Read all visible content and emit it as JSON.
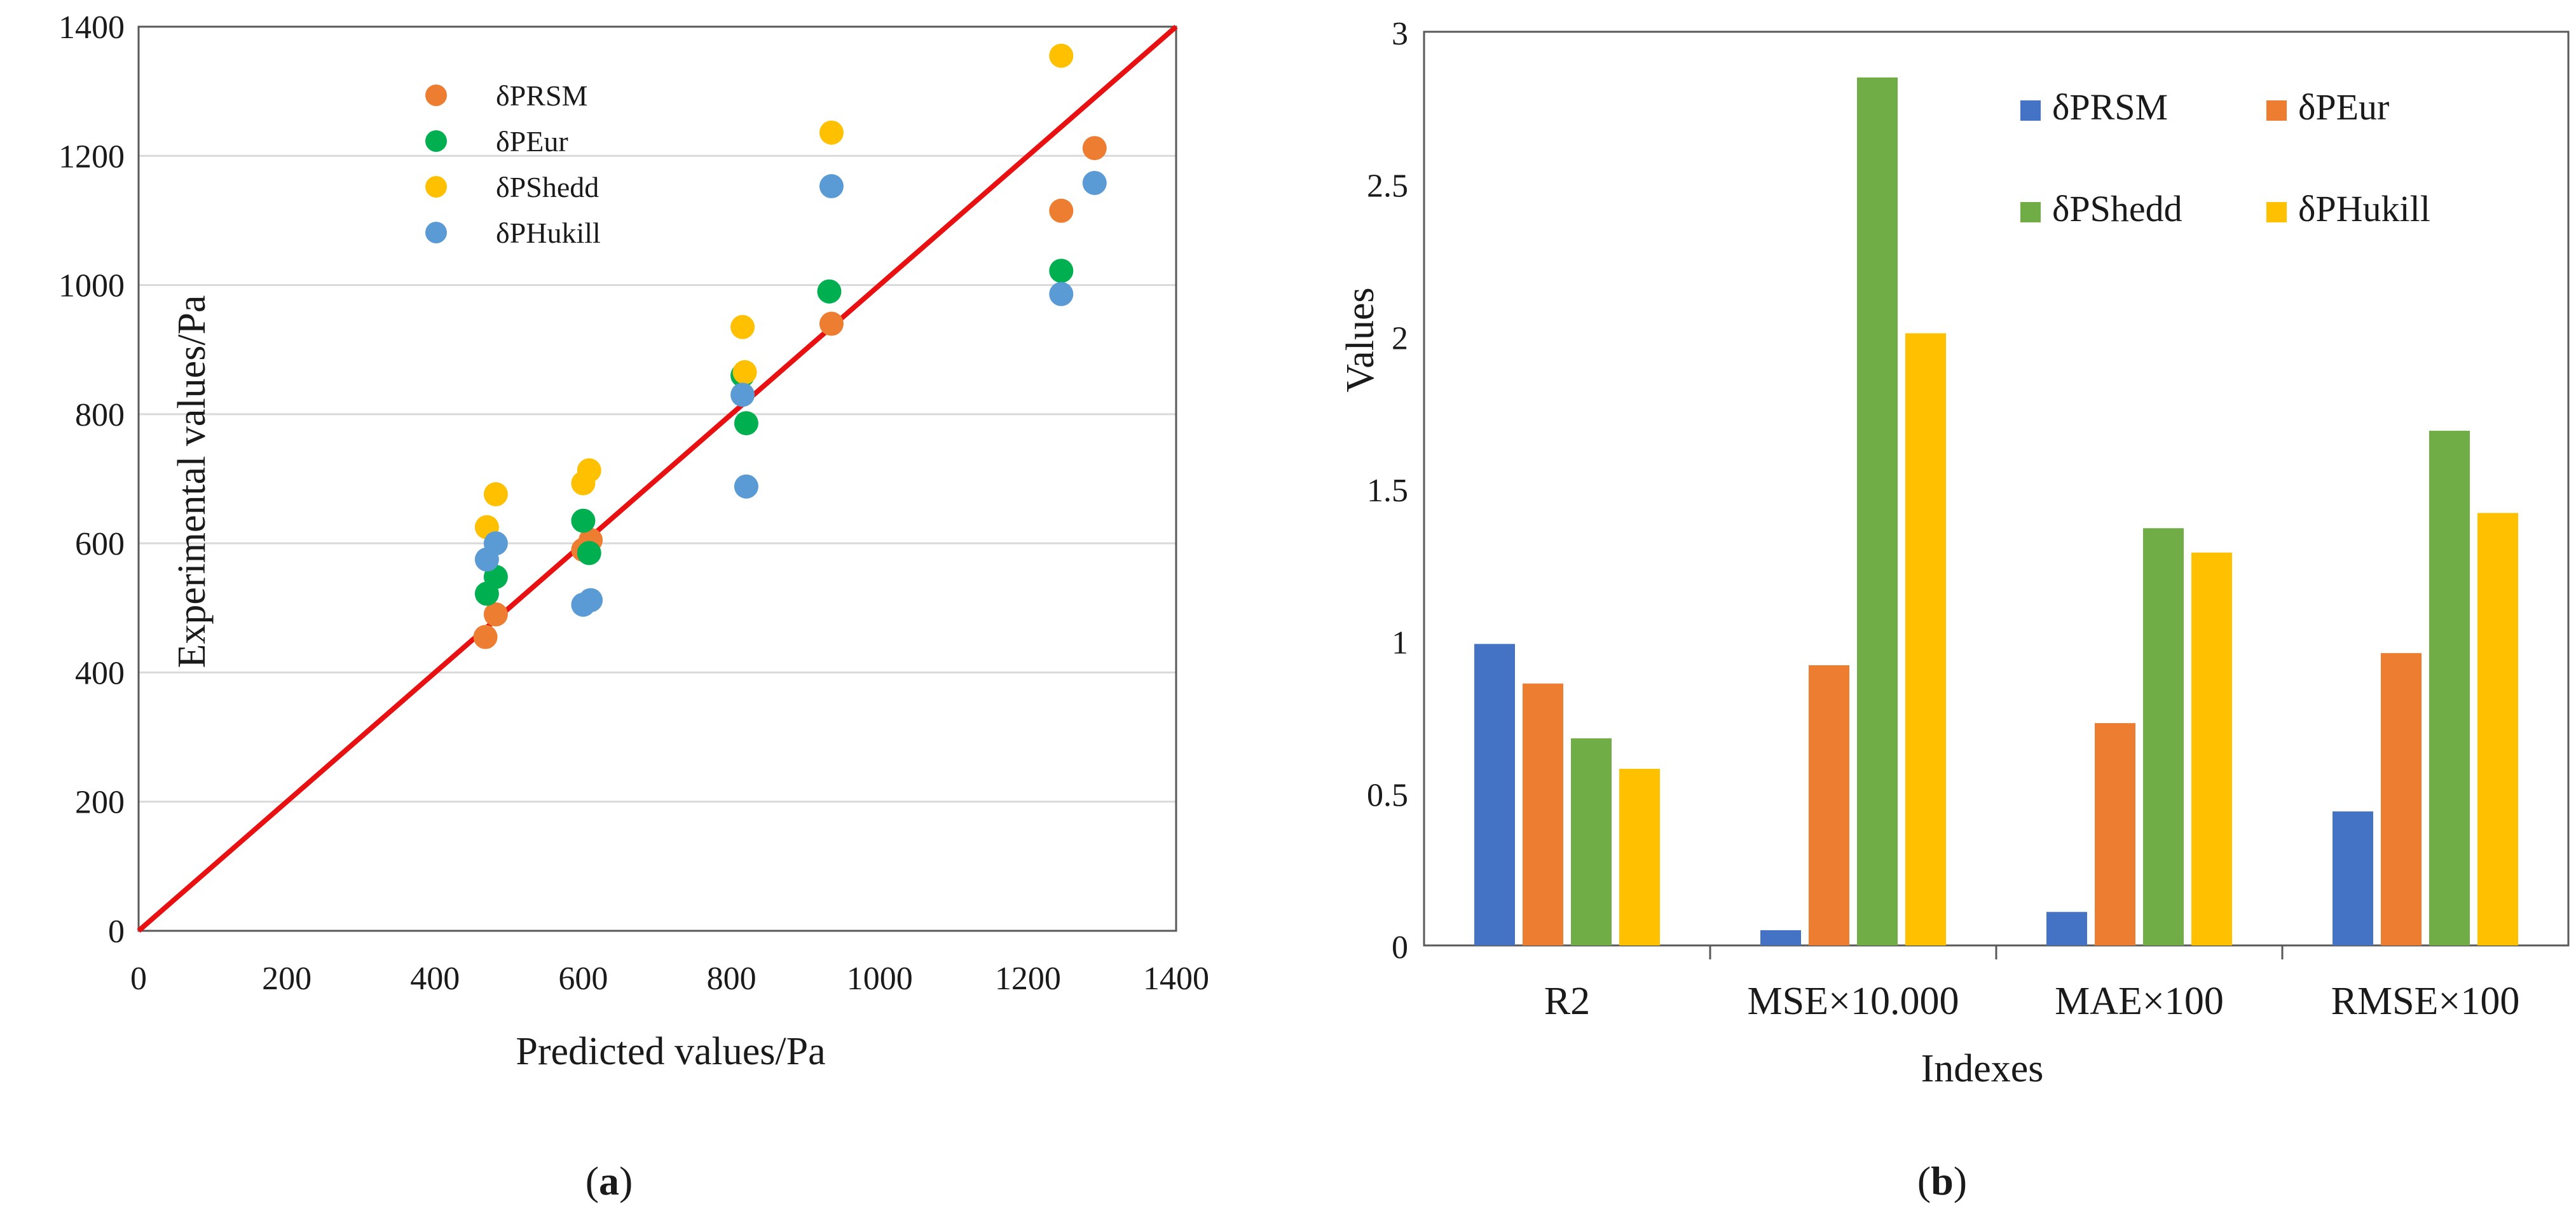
{
  "colors": {
    "rsm": "#ED7D31",
    "eur": "#00B050",
    "shedd": "#FFC000",
    "hukill": "#5B9BD5",
    "bar_rsm": "#4472C4",
    "bar_eur": "#ED7D31",
    "bar_shedd": "#70AD47",
    "bar_hukill": "#FFC000",
    "line": "#E81010",
    "grid": "#D9D9D9",
    "axis": "#595959"
  },
  "captions": {
    "a": {
      "open": "(",
      "letter": "a",
      "close": ")"
    },
    "b": {
      "open": "(",
      "letter": "b",
      "close": ")"
    }
  },
  "chart_data": [
    {
      "type": "scatter",
      "title": "",
      "xlabel": "Predicted values/Pa",
      "ylabel": "Experimental values/Pa",
      "xlim": [
        0,
        1400
      ],
      "ylim": [
        0,
        1400
      ],
      "xticks": [
        0,
        200,
        400,
        600,
        800,
        1000,
        1200,
        1400
      ],
      "yticks": [
        0,
        200,
        400,
        600,
        800,
        1000,
        1200,
        1400
      ],
      "xtick_labels": [
        "0",
        "200",
        "400",
        "600",
        "800",
        "1000",
        "1200",
        "1400"
      ],
      "ytick_labels": [
        "0",
        "200",
        "400",
        "600",
        "800",
        "1000",
        "1200",
        "1400"
      ],
      "grid": "horizontal",
      "legend_position": "top-left",
      "reference_line": {
        "x": [
          0,
          1400
        ],
        "y": [
          0,
          1400
        ]
      },
      "series": [
        {
          "key": "rsm",
          "name": "δPRSM",
          "points": [
            [
              468,
              455
            ],
            [
              482,
              490
            ],
            [
              600,
              590
            ],
            [
              610,
              605
            ],
            [
              935,
              940
            ],
            [
              1245,
              1115
            ],
            [
              1290,
              1212
            ]
          ]
        },
        {
          "key": "eur",
          "name": "δPEur",
          "points": [
            [
              470,
              522
            ],
            [
              482,
              548
            ],
            [
              600,
              635
            ],
            [
              608,
              585
            ],
            [
              815,
              860
            ],
            [
              820,
              786
            ],
            [
              932,
              990
            ],
            [
              1245,
              1022
            ]
          ]
        },
        {
          "key": "shedd",
          "name": "δPShedd",
          "points": [
            [
              470,
              625
            ],
            [
              482,
              676
            ],
            [
              600,
              693
            ],
            [
              608,
              713
            ],
            [
              815,
              935
            ],
            [
              818,
              865
            ],
            [
              935,
              1236
            ],
            [
              1245,
              1355
            ]
          ]
        },
        {
          "key": "hukill",
          "name": "δPHukill",
          "points": [
            [
              470,
              575
            ],
            [
              482,
              600
            ],
            [
              600,
              505
            ],
            [
              610,
              512
            ],
            [
              815,
              830
            ],
            [
              820,
              688
            ],
            [
              935,
              1153
            ],
            [
              1245,
              986
            ],
            [
              1290,
              1158
            ]
          ]
        }
      ]
    },
    {
      "type": "bar",
      "title": "",
      "xlabel": "Indexes",
      "ylabel": "Values",
      "ylim": [
        0,
        3
      ],
      "yticks": [
        0,
        0.5,
        1,
        1.5,
        2,
        2.5,
        3
      ],
      "ytick_labels": [
        "0",
        "0.5",
        "1",
        "1.5",
        "2",
        "2.5",
        "3"
      ],
      "grid": false,
      "legend_position": "top-right",
      "categories": [
        "R2",
        "MSE×10.000",
        "MAE×100",
        "RMSE×100"
      ],
      "series": [
        {
          "key": "bar_rsm",
          "name": "δPRSM",
          "values": [
            0.99,
            0.05,
            0.11,
            0.44
          ]
        },
        {
          "key": "bar_eur",
          "name": "δPEur",
          "values": [
            0.86,
            0.92,
            0.73,
            0.96
          ]
        },
        {
          "key": "bar_shedd",
          "name": "δPShedd",
          "values": [
            0.68,
            2.85,
            1.37,
            1.69
          ]
        },
        {
          "key": "bar_hukill",
          "name": "δPHukill",
          "values": [
            0.58,
            2.01,
            1.29,
            1.42
          ]
        }
      ]
    }
  ]
}
